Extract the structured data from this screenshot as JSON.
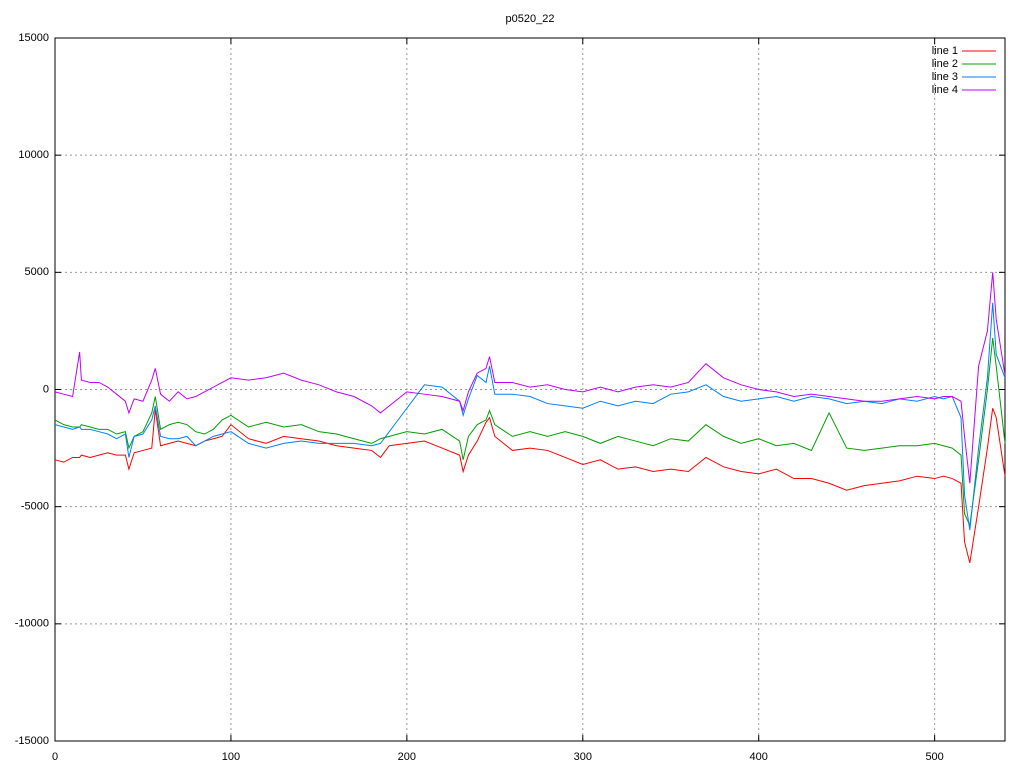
{
  "chart_data": {
    "type": "line",
    "title": "p0520_22",
    "xlim": [
      0,
      540
    ],
    "ylim": [
      -15000,
      15000
    ],
    "xticks": [
      0,
      100,
      200,
      300,
      400,
      500
    ],
    "yticks": [
      -15000,
      -10000,
      -5000,
      0,
      5000,
      10000,
      15000
    ],
    "grid": true,
    "legend": "top-right",
    "x": [
      0,
      5,
      10,
      14,
      15,
      20,
      25,
      30,
      35,
      40,
      42,
      45,
      50,
      55,
      57,
      60,
      65,
      70,
      75,
      80,
      85,
      90,
      95,
      100,
      110,
      120,
      130,
      140,
      150,
      160,
      170,
      180,
      185,
      190,
      200,
      210,
      220,
      230,
      232,
      235,
      240,
      245,
      247,
      250,
      260,
      270,
      280,
      290,
      300,
      310,
      320,
      330,
      340,
      350,
      360,
      370,
      380,
      390,
      400,
      410,
      420,
      430,
      440,
      450,
      460,
      470,
      480,
      490,
      500,
      505,
      510,
      515,
      517,
      520,
      525,
      530,
      533,
      535,
      540
    ],
    "series": [
      {
        "name": "line 1",
        "color": "#ff0000",
        "values": [
          -3000,
          -3100,
          -2900,
          -2900,
          -2800,
          -2900,
          -2800,
          -2700,
          -2800,
          -2800,
          -3400,
          -2700,
          -2600,
          -2500,
          -850,
          -2400,
          -2300,
          -2200,
          -2300,
          -2400,
          -2200,
          -2100,
          -2000,
          -1500,
          -2100,
          -2300,
          -2000,
          -2100,
          -2200,
          -2400,
          -2500,
          -2600,
          -2900,
          -2400,
          -2300,
          -2200,
          -2500,
          -2800,
          -3500,
          -2800,
          -2200,
          -1400,
          -1200,
          -2000,
          -2600,
          -2500,
          -2600,
          -2900,
          -3200,
          -3000,
          -3400,
          -3300,
          -3500,
          -3400,
          -3500,
          -2900,
          -3300,
          -3500,
          -3600,
          -3400,
          -3800,
          -3800,
          -4000,
          -4300,
          -4100,
          -4000,
          -3900,
          -3700,
          -3800,
          -3700,
          -3800,
          -4000,
          -6500,
          -7400,
          -5000,
          -2500,
          -800,
          -1200,
          -3700
        ]
      },
      {
        "name": "line 2",
        "color": "#00a000",
        "values": [
          -1300,
          -1500,
          -1600,
          -1600,
          -1500,
          -1600,
          -1700,
          -1700,
          -1900,
          -1800,
          -2500,
          -2000,
          -1800,
          -1000,
          -300,
          -1700,
          -1500,
          -1400,
          -1500,
          -1800,
          -1900,
          -1700,
          -1300,
          -1100,
          -1600,
          -1400,
          -1600,
          -1500,
          -1800,
          -1900,
          -2100,
          -2300,
          -2100,
          -2000,
          -1800,
          -1900,
          -1700,
          -2200,
          -3000,
          -2000,
          -1500,
          -1300,
          -900,
          -1500,
          -2000,
          -1800,
          -2000,
          -1800,
          -2000,
          -2300,
          -2000,
          -2200,
          -2400,
          -2100,
          -2200,
          -1500,
          -2000,
          -2300,
          -2100,
          -2400,
          -2300,
          -2600,
          -1000,
          -2500,
          -2600,
          -2500,
          -2400,
          -2400,
          -2300,
          -2400,
          -2500,
          -2800,
          -5300,
          -5800,
          -3000,
          0,
          2200,
          1000,
          -2300
        ]
      },
      {
        "name": "line 3",
        "color": "#0080ff",
        "values": [
          -1500,
          -1600,
          -1700,
          -1600,
          -1700,
          -1700,
          -1800,
          -1900,
          -2100,
          -1900,
          -2900,
          -2000,
          -1900,
          -1300,
          -700,
          -2000,
          -2100,
          -2100,
          -2000,
          -2400,
          -2200,
          -2000,
          -1900,
          -1800,
          -2300,
          -2500,
          -2300,
          -2200,
          -2300,
          -2300,
          -2300,
          -2400,
          -2300,
          -1800,
          -800,
          200,
          100,
          -500,
          -1100,
          -400,
          600,
          300,
          1000,
          -200,
          -200,
          -300,
          -600,
          -700,
          -800,
          -500,
          -700,
          -500,
          -600,
          -200,
          -100,
          200,
          -300,
          -500,
          -400,
          -300,
          -500,
          -300,
          -400,
          -600,
          -500,
          -600,
          -400,
          -500,
          -300,
          -400,
          -300,
          -1200,
          -4500,
          -6000,
          -2500,
          500,
          3700,
          1500,
          500
        ]
      },
      {
        "name": "line 4",
        "color": "#c000ff",
        "values": [
          -100,
          -200,
          -300,
          1600,
          400,
          300,
          300,
          100,
          -200,
          -500,
          -1000,
          -400,
          -500,
          400,
          900,
          -200,
          -500,
          -100,
          -400,
          -300,
          -100,
          100,
          300,
          500,
          400,
          500,
          700,
          400,
          200,
          -100,
          -300,
          -700,
          -1000,
          -700,
          -100,
          -200,
          -300,
          -500,
          -900,
          -100,
          700,
          900,
          1400,
          300,
          300,
          100,
          200,
          0,
          -100,
          100,
          -100,
          100,
          200,
          100,
          300,
          1100,
          500,
          200,
          0,
          -100,
          -300,
          -200,
          -300,
          -400,
          -500,
          -500,
          -400,
          -300,
          -400,
          -300,
          -300,
          -500,
          -2000,
          -4000,
          1000,
          2500,
          5000,
          3000,
          600
        ]
      }
    ]
  }
}
